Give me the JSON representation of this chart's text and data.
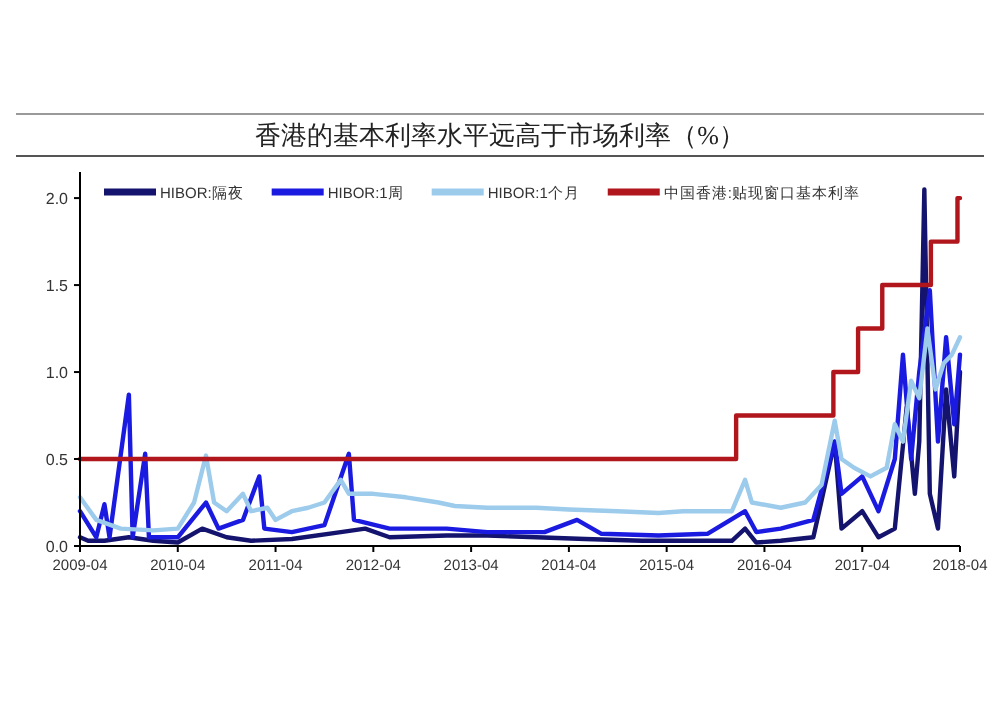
{
  "chart_data": {
    "type": "line",
    "title": "香港的基本利率水平远高于市场利率（%）",
    "xlim": [
      "2009-04",
      "2018-04"
    ],
    "xticks": [
      "2009-04",
      "2010-04",
      "2011-04",
      "2012-04",
      "2013-04",
      "2014-04",
      "2015-04",
      "2016-04",
      "2017-04",
      "2018-04"
    ],
    "ylim": [
      0,
      2.15
    ],
    "yticks": [
      {
        "value": 0,
        "label": "0.0"
      },
      {
        "value": 0.5,
        "label": "0.5"
      },
      {
        "value": 1,
        "label": "1.0"
      },
      {
        "value": 1.5,
        "label": "1.5"
      },
      {
        "value": 2,
        "label": "2.0"
      }
    ],
    "legend": "top",
    "grid": false,
    "series": [
      {
        "name": "HIBOR:隔夜",
        "color": "#14146e",
        "x": [
          "2009-04-01",
          "2009-05-01",
          "2009-07-01",
          "2009-10-01",
          "2010-01-01",
          "2010-04-01",
          "2010-07-01",
          "2010-10-01",
          "2011-01-01",
          "2011-06-01",
          "2011-12-01",
          "2012-03-01",
          "2012-06-01",
          "2013-01-01",
          "2013-06-01",
          "2013-12-01",
          "2014-06-01",
          "2015-01-01",
          "2015-06-01",
          "2015-12-01",
          "2016-01-20",
          "2016-03-01",
          "2016-06-01",
          "2016-10-01",
          "2016-12-20",
          "2017-01-15",
          "2017-04-01",
          "2017-06-01",
          "2017-08-01",
          "2017-09-15",
          "2017-10-15",
          "2017-11-01",
          "2017-11-20",
          "2017-12-10",
          "2018-01-10",
          "2018-02-10",
          "2018-03-10",
          "2018-04-01"
        ],
        "values": [
          0.05,
          0.03,
          0.03,
          0.05,
          0.03,
          0.02,
          0.1,
          0.05,
          0.03,
          0.04,
          0.08,
          0.1,
          0.05,
          0.06,
          0.06,
          0.05,
          0.04,
          0.03,
          0.03,
          0.03,
          0.1,
          0.02,
          0.03,
          0.05,
          0.6,
          0.1,
          0.2,
          0.05,
          0.1,
          0.8,
          0.3,
          0.6,
          2.05,
          0.3,
          0.1,
          0.9,
          0.4,
          1.0
        ]
      },
      {
        "name": "HIBOR:1周",
        "color": "#1a1ae0",
        "x": [
          "2009-04-01",
          "2009-06-01",
          "2009-07-01",
          "2009-07-20",
          "2009-10-01",
          "2009-10-15",
          "2009-12-01",
          "2009-12-15",
          "2010-04-01",
          "2010-07-15",
          "2010-09-01",
          "2010-12-01",
          "2011-02-01",
          "2011-02-20",
          "2011-06-01",
          "2011-10-01",
          "2012-01-01",
          "2012-01-20",
          "2012-06-01",
          "2013-01-01",
          "2013-06-01",
          "2014-01-01",
          "2014-05-01",
          "2014-08-01",
          "2015-03-01",
          "2015-09-01",
          "2016-01-20",
          "2016-03-01",
          "2016-06-01",
          "2016-10-01",
          "2016-12-20",
          "2017-01-15",
          "2017-04-01",
          "2017-06-01",
          "2017-08-01",
          "2017-09-01",
          "2017-10-01",
          "2017-11-01",
          "2017-12-10",
          "2018-01-10",
          "2018-02-10",
          "2018-03-10",
          "2018-04-01"
        ],
        "values": [
          0.2,
          0.05,
          0.24,
          0.05,
          0.87,
          0.05,
          0.53,
          0.05,
          0.05,
          0.25,
          0.1,
          0.15,
          0.4,
          0.1,
          0.08,
          0.12,
          0.53,
          0.15,
          0.1,
          0.1,
          0.08,
          0.08,
          0.15,
          0.07,
          0.06,
          0.07,
          0.2,
          0.08,
          0.1,
          0.15,
          0.6,
          0.3,
          0.4,
          0.2,
          0.5,
          1.1,
          0.5,
          1.0,
          1.47,
          0.6,
          1.2,
          0.7,
          1.1
        ]
      },
      {
        "name": "HIBOR:1个月",
        "color": "#9ccbec",
        "x": [
          "2009-04-01",
          "2009-06-01",
          "2009-09-01",
          "2010-01-01",
          "2010-04-01",
          "2010-06-01",
          "2010-07-15",
          "2010-08-15",
          "2010-10-01",
          "2010-12-01",
          "2011-01-01",
          "2011-03-01",
          "2011-04-01",
          "2011-06-01",
          "2011-08-01",
          "2011-10-01",
          "2011-12-01",
          "2012-01-01",
          "2012-04-01",
          "2012-08-01",
          "2012-12-01",
          "2013-02-01",
          "2013-06-01",
          "2013-12-01",
          "2014-04-01",
          "2014-10-01",
          "2015-03-01",
          "2015-06-01",
          "2015-09-01",
          "2015-12-01",
          "2016-01-20",
          "2016-02-15",
          "2016-06-01",
          "2016-09-01",
          "2016-11-01",
          "2016-12-20",
          "2017-01-15",
          "2017-03-01",
          "2017-05-01",
          "2017-07-01",
          "2017-08-01",
          "2017-09-01",
          "2017-10-01",
          "2017-11-01",
          "2017-12-01",
          "2018-01-01",
          "2018-02-01",
          "2018-03-01",
          "2018-04-01"
        ],
        "values": [
          0.28,
          0.15,
          0.1,
          0.09,
          0.1,
          0.25,
          0.52,
          0.25,
          0.2,
          0.3,
          0.2,
          0.22,
          0.15,
          0.2,
          0.22,
          0.25,
          0.38,
          0.3,
          0.3,
          0.28,
          0.25,
          0.23,
          0.22,
          0.22,
          0.21,
          0.2,
          0.19,
          0.2,
          0.2,
          0.2,
          0.38,
          0.25,
          0.22,
          0.25,
          0.35,
          0.72,
          0.5,
          0.45,
          0.4,
          0.45,
          0.7,
          0.6,
          0.95,
          0.85,
          1.25,
          0.9,
          1.05,
          1.1,
          1.2
        ]
      },
      {
        "name": "中国香港:贴现窗口基本利率",
        "type": "step",
        "color": "#b0161c",
        "x": [
          "2009-04-01",
          "2015-12-17",
          "2016-12-15",
          "2017-03-16",
          "2017-06-15",
          "2017-12-14",
          "2018-03-22",
          "2018-04-01"
        ],
        "values": [
          0.5,
          0.75,
          1.0,
          1.25,
          1.5,
          1.75,
          2.0,
          2.0
        ]
      }
    ]
  }
}
